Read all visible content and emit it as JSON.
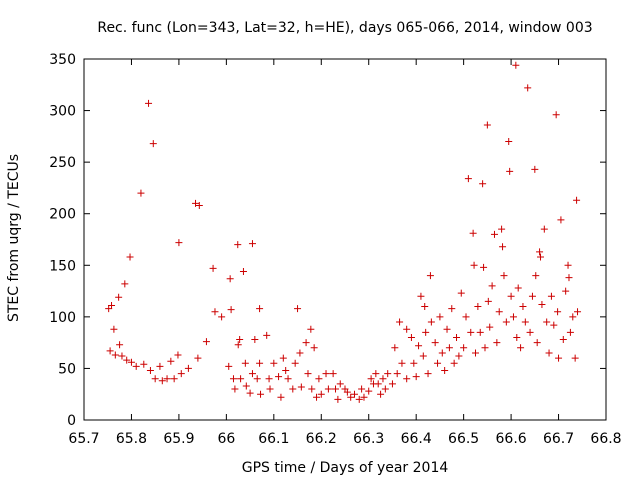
{
  "chart_data": {
    "type": "scatter",
    "title": "Rec. func (Lon=343, Lat=32, h=HE), days 065-066, 2014, window 003",
    "xlabel": "GPS time / Days of year 2014",
    "ylabel": "STEC from uqrg / TECUs",
    "xlim": [
      65.7,
      66.8
    ],
    "ylim": [
      0,
      350
    ],
    "xticks": [
      "65.7",
      "65.8",
      "65.9",
      "66",
      "66.1",
      "66.2",
      "66.3",
      "66.4",
      "66.5",
      "66.6",
      "66.7",
      "66.8"
    ],
    "yticks": [
      "0",
      "50",
      "100",
      "150",
      "200",
      "250",
      "300",
      "350"
    ],
    "grid": false,
    "legend": "none",
    "marker": "plus",
    "color": "#cc0000",
    "series": [
      {
        "points": [
          [
            65.752,
            108
          ],
          [
            65.758,
            111
          ],
          [
            65.755,
            67
          ],
          [
            65.763,
            88
          ],
          [
            65.766,
            63
          ],
          [
            65.773,
            119
          ],
          [
            65.775,
            73
          ],
          [
            65.78,
            62
          ],
          [
            65.786,
            132
          ],
          [
            65.79,
            58
          ],
          [
            65.797,
            158
          ],
          [
            65.8,
            56
          ],
          [
            65.81,
            52
          ],
          [
            65.82,
            220
          ],
          [
            65.826,
            54
          ],
          [
            65.836,
            307
          ],
          [
            65.84,
            48
          ],
          [
            65.846,
            268
          ],
          [
            65.85,
            40
          ],
          [
            65.86,
            52
          ],
          [
            65.865,
            38
          ],
          [
            65.875,
            40
          ],
          [
            65.883,
            57
          ],
          [
            65.89,
            40
          ],
          [
            65.898,
            63
          ],
          [
            65.9,
            172
          ],
          [
            65.905,
            45
          ],
          [
            65.92,
            50
          ],
          [
            65.935,
            210
          ],
          [
            65.943,
            208
          ],
          [
            65.94,
            60
          ],
          [
            65.958,
            76
          ],
          [
            65.972,
            147
          ],
          [
            65.976,
            105
          ],
          [
            65.99,
            100
          ],
          [
            66.005,
            52
          ],
          [
            66.008,
            137
          ],
          [
            66.01,
            107
          ],
          [
            66.015,
            40
          ],
          [
            66.018,
            30
          ],
          [
            66.024,
            170
          ],
          [
            66.025,
            73
          ],
          [
            66.028,
            78
          ],
          [
            66.03,
            40
          ],
          [
            66.036,
            144
          ],
          [
            66.04,
            55
          ],
          [
            66.042,
            33
          ],
          [
            66.05,
            26
          ],
          [
            66.055,
            171
          ],
          [
            66.055,
            45
          ],
          [
            66.06,
            78
          ],
          [
            66.065,
            40
          ],
          [
            66.07,
            108
          ],
          [
            66.07,
            55
          ],
          [
            66.072,
            25
          ],
          [
            66.085,
            82
          ],
          [
            66.09,
            40
          ],
          [
            66.092,
            30
          ],
          [
            66.1,
            55
          ],
          [
            66.11,
            42
          ],
          [
            66.115,
            22
          ],
          [
            66.12,
            60
          ],
          [
            66.125,
            48
          ],
          [
            66.13,
            40
          ],
          [
            66.14,
            30
          ],
          [
            66.145,
            55
          ],
          [
            66.15,
            108
          ],
          [
            66.155,
            65
          ],
          [
            66.158,
            32
          ],
          [
            66.168,
            75
          ],
          [
            66.172,
            45
          ],
          [
            66.178,
            88
          ],
          [
            66.18,
            30
          ],
          [
            66.185,
            70
          ],
          [
            66.19,
            22
          ],
          [
            66.195,
            40
          ],
          [
            66.2,
            25
          ],
          [
            66.21,
            45
          ],
          [
            66.215,
            30
          ],
          [
            66.225,
            45
          ],
          [
            66.23,
            30
          ],
          [
            66.235,
            20
          ],
          [
            66.24,
            35
          ],
          [
            66.25,
            30
          ],
          [
            66.255,
            27
          ],
          [
            66.262,
            22
          ],
          [
            66.27,
            25
          ],
          [
            66.28,
            20
          ],
          [
            66.285,
            30
          ],
          [
            66.29,
            22
          ],
          [
            66.3,
            28
          ],
          [
            66.305,
            40
          ],
          [
            66.31,
            35
          ],
          [
            66.315,
            45
          ],
          [
            66.32,
            35
          ],
          [
            66.325,
            25
          ],
          [
            66.33,
            40
          ],
          [
            66.335,
            30
          ],
          [
            66.34,
            45
          ],
          [
            66.35,
            35
          ],
          [
            66.355,
            70
          ],
          [
            66.36,
            45
          ],
          [
            66.365,
            95
          ],
          [
            66.37,
            55
          ],
          [
            66.38,
            88
          ],
          [
            66.38,
            40
          ],
          [
            66.39,
            80
          ],
          [
            66.395,
            55
          ],
          [
            66.4,
            42
          ],
          [
            66.405,
            72
          ],
          [
            66.41,
            120
          ],
          [
            66.415,
            62
          ],
          [
            66.418,
            110
          ],
          [
            66.42,
            85
          ],
          [
            66.425,
            45
          ],
          [
            66.43,
            140
          ],
          [
            66.432,
            95
          ],
          [
            66.44,
            75
          ],
          [
            66.445,
            55
          ],
          [
            66.45,
            100
          ],
          [
            66.455,
            65
          ],
          [
            66.46,
            48
          ],
          [
            66.465,
            88
          ],
          [
            66.47,
            70
          ],
          [
            66.475,
            108
          ],
          [
            66.48,
            55
          ],
          [
            66.485,
            80
          ],
          [
            66.49,
            62
          ],
          [
            66.495,
            123
          ],
          [
            66.5,
            70
          ],
          [
            66.505,
            100
          ],
          [
            66.51,
            234
          ],
          [
            66.515,
            85
          ],
          [
            66.52,
            181
          ],
          [
            66.522,
            150
          ],
          [
            66.525,
            65
          ],
          [
            66.53,
            110
          ],
          [
            66.535,
            85
          ],
          [
            66.54,
            229
          ],
          [
            66.542,
            148
          ],
          [
            66.545,
            70
          ],
          [
            66.55,
            286
          ],
          [
            66.552,
            115
          ],
          [
            66.555,
            90
          ],
          [
            66.56,
            130
          ],
          [
            66.565,
            180
          ],
          [
            66.57,
            75
          ],
          [
            66.575,
            105
          ],
          [
            66.58,
            185
          ],
          [
            66.582,
            168
          ],
          [
            66.585,
            140
          ],
          [
            66.59,
            95
          ],
          [
            66.595,
            270
          ],
          [
            66.597,
            241
          ],
          [
            66.6,
            120
          ],
          [
            66.605,
            100
          ],
          [
            66.61,
            344
          ],
          [
            66.612,
            80
          ],
          [
            66.615,
            128
          ],
          [
            66.62,
            70
          ],
          [
            66.625,
            110
          ],
          [
            66.63,
            95
          ],
          [
            66.635,
            322
          ],
          [
            66.64,
            85
          ],
          [
            66.645,
            120
          ],
          [
            66.65,
            243
          ],
          [
            66.652,
            140
          ],
          [
            66.655,
            75
          ],
          [
            66.66,
            163
          ],
          [
            66.662,
            158
          ],
          [
            66.665,
            112
          ],
          [
            66.67,
            185
          ],
          [
            66.675,
            95
          ],
          [
            66.68,
            65
          ],
          [
            66.685,
            120
          ],
          [
            66.69,
            92
          ],
          [
            66.695,
            296
          ],
          [
            66.698,
            105
          ],
          [
            66.7,
            60
          ],
          [
            66.705,
            194
          ],
          [
            66.71,
            78
          ],
          [
            66.715,
            125
          ],
          [
            66.72,
            150
          ],
          [
            66.722,
            138
          ],
          [
            66.725,
            85
          ],
          [
            66.73,
            100
          ],
          [
            66.735,
            60
          ],
          [
            66.738,
            213
          ],
          [
            66.74,
            105
          ]
        ]
      }
    ]
  }
}
